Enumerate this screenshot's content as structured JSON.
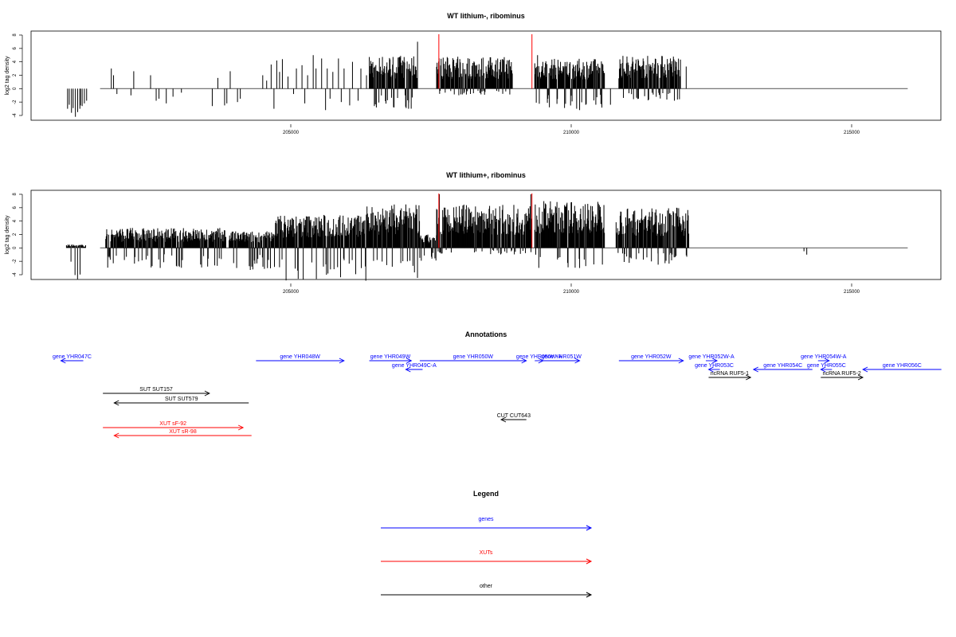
{
  "chart_data": [
    {
      "type": "bar",
      "title": "WT lithium-, ribominus",
      "xlabel": "",
      "ylabel": "log2 tag density",
      "xlim": [
        201000,
        216000
      ],
      "ylim": [
        -5.5,
        9
      ],
      "yticks": [
        -4,
        -2,
        0,
        2,
        4,
        6,
        8
      ],
      "xticks": [
        205000,
        210000,
        215000
      ],
      "region_start": 201600,
      "region_end": 216000,
      "color": "#000000",
      "markers": [
        {
          "x": 207640,
          "color": "#ff0000"
        },
        {
          "x": 209300,
          "color": "#ff0000"
        }
      ],
      "series": [
        {
          "values": [
            [
              201020,
              -3.0
            ],
            [
              201050,
              -2.4
            ],
            [
              201090,
              -3.6
            ],
            [
              201120,
              -2.9
            ],
            [
              201160,
              -4.2
            ],
            [
              201200,
              -3.5
            ],
            [
              201240,
              -3.0
            ],
            [
              201280,
              -2.6
            ],
            [
              201320,
              -2.2
            ],
            [
              201360,
              -1.8
            ],
            [
              201800,
              3.0
            ],
            [
              201840,
              2.0
            ],
            [
              201250,
              -2.5
            ],
            [
              201900,
              -0.8
            ],
            [
              202150,
              -1.0
            ],
            [
              202200,
              2.6
            ],
            [
              202500,
              2.0
            ],
            [
              202600,
              -1.8
            ],
            [
              202650,
              -1.5
            ],
            [
              202780,
              -2.2
            ],
            [
              202900,
              -1.2
            ],
            [
              203050,
              -0.6
            ],
            [
              203600,
              -2.6
            ],
            [
              203700,
              1.6
            ],
            [
              203820,
              -2.5
            ],
            [
              203860,
              -2.2
            ],
            [
              203920,
              2.6
            ],
            [
              204050,
              -2.0
            ],
            [
              204100,
              -1.5
            ],
            [
              204500,
              2.0
            ],
            [
              204570,
              1.2
            ],
            [
              204650,
              3.6
            ],
            [
              204700,
              -3.0
            ],
            [
              204750,
              4.2
            ],
            [
              204800,
              2.5
            ],
            [
              204850,
              4.4
            ],
            [
              204950,
              1.8
            ],
            [
              205050,
              -0.8
            ],
            [
              205100,
              3.0
            ],
            [
              205200,
              3.5
            ],
            [
              205250,
              -2.2
            ],
            [
              205300,
              2.0
            ],
            [
              205400,
              5.0
            ],
            [
              205450,
              3.0
            ],
            [
              205550,
              4.5
            ],
            [
              205620,
              -3.2
            ],
            [
              205650,
              3.0
            ],
            [
              205700,
              -1.5
            ],
            [
              205750,
              2.5
            ],
            [
              205850,
              4.5
            ],
            [
              205900,
              -2.0
            ],
            [
              205950,
              3.0
            ],
            [
              206050,
              -2.5
            ],
            [
              206100,
              4.0
            ],
            [
              206200,
              -1.8
            ],
            [
              206250,
              3.0
            ],
            [
              206350,
              2.0
            ]
          ]
        },
        {
          "dense": [
            206400,
            207250,
            5.0,
            -3.0
          ]
        },
        {
          "dense": [
            207600,
            208950,
            4.8,
            -1.0
          ]
        },
        {
          "dense": [
            209350,
            210600,
            4.5,
            -3.0
          ]
        },
        {
          "dense": [
            210850,
            211950,
            5.0,
            -2.0
          ]
        },
        {
          "values": [
            [
              207260,
              7.0
            ],
            [
              207100,
              -3.0
            ],
            [
              209400,
              5.0
            ],
            [
              210150,
              -3.2
            ],
            [
              210700,
              -2.4
            ],
            [
              211200,
              -1.5
            ],
            [
              212050,
              3.3
            ]
          ]
        }
      ]
    },
    {
      "type": "bar",
      "title": "WT lithium+, ribominus",
      "xlabel": "",
      "ylabel": "log2 tag density",
      "xlim": [
        201000,
        216000
      ],
      "ylim": [
        -5.5,
        9
      ],
      "yticks": [
        -4,
        -2,
        0,
        2,
        4,
        6,
        8
      ],
      "xticks": [
        205000,
        210000,
        215000
      ],
      "region_start": 201600,
      "region_end": 216000,
      "color": "#000000",
      "markers": [
        {
          "x": 207640,
          "color": "#ff0000"
        },
        {
          "x": 209300,
          "color": "#ff0000"
        }
      ],
      "series": [
        {
          "dense": [
            201000,
            201350,
            0.5,
            -5.0
          ]
        },
        {
          "dense": [
            201700,
            203850,
            3.0,
            -3.0
          ]
        },
        {
          "dense": [
            203900,
            204700,
            2.5,
            -3.5
          ]
        },
        {
          "dense": [
            204700,
            206350,
            5.0,
            -5.0
          ]
        },
        {
          "dense": [
            206350,
            207300,
            6.5,
            -4.5
          ]
        },
        {
          "dense": [
            207300,
            207600,
            2.0,
            -2.0
          ]
        },
        {
          "dense": [
            207600,
            209300,
            6.5,
            -1.0
          ]
        },
        {
          "dense": [
            209350,
            210600,
            7.0,
            -3.0
          ]
        },
        {
          "dense": [
            210800,
            212100,
            6.0,
            -2.5
          ]
        },
        {
          "values": [
            [
              214150,
              -0.5
            ],
            [
              214200,
              -1.0
            ],
            [
              207650,
              8.0
            ],
            [
              209280,
              8.0
            ],
            [
              210150,
              -3.0
            ],
            [
              211550,
              -2.5
            ],
            [
              211750,
              -1.0
            ]
          ]
        }
      ]
    }
  ],
  "annotations": {
    "title": "Annotations",
    "features": [
      {
        "label": "gene YHR047C",
        "start": 200900,
        "end": 201300,
        "strand": "-",
        "color": "#0000ff",
        "row": 1
      },
      {
        "label": "gene YHR048W",
        "start": 204380,
        "end": 205950,
        "strand": "+",
        "color": "#0000ff",
        "row": 1
      },
      {
        "label": "gene YHR049W",
        "start": 206400,
        "end": 207150,
        "strand": "+",
        "color": "#0000ff",
        "row": 1
      },
      {
        "label": "gene YHR049C-A",
        "start": 207050,
        "end": 207350,
        "strand": "-",
        "color": "#0000ff",
        "row": 2
      },
      {
        "label": "gene YHR050W",
        "start": 207300,
        "end": 209200,
        "strand": "+",
        "color": "#0000ff",
        "row": 1
      },
      {
        "label": "gene YHR050W-A",
        "start": 209350,
        "end": 209500,
        "strand": "+",
        "color": "#0000ff",
        "row": 1
      },
      {
        "label": "gene YHR051W",
        "start": 209500,
        "end": 210150,
        "strand": "+",
        "color": "#0000ff",
        "row": 1
      },
      {
        "label": "gene YHR052W",
        "start": 210850,
        "end": 212000,
        "strand": "+",
        "color": "#0000ff",
        "row": 1
      },
      {
        "label": "gene YHR052W-A",
        "start": 212400,
        "end": 212600,
        "strand": "+",
        "color": "#0000ff",
        "row": 1
      },
      {
        "label": "gene YHR053C",
        "start": 212450,
        "end": 212650,
        "strand": "-",
        "color": "#0000ff",
        "row": 2
      },
      {
        "label": "ncRNA RUF5-1",
        "start": 212450,
        "end": 213200,
        "strand": "+",
        "color": "#000000",
        "row": 3
      },
      {
        "label": "gene YHR054C",
        "start": 213250,
        "end": 214300,
        "strand": "-",
        "color": "#0000ff",
        "row": 2
      },
      {
        "label": "gene YHR054W-A",
        "start": 214400,
        "end": 214600,
        "strand": "+",
        "color": "#0000ff",
        "row": 1
      },
      {
        "label": "gene YHR055C",
        "start": 214450,
        "end": 214650,
        "strand": "-",
        "color": "#0000ff",
        "row": 2
      },
      {
        "label": "ncRNA RUF5-2",
        "start": 214450,
        "end": 215200,
        "strand": "+",
        "color": "#000000",
        "row": 3
      },
      {
        "label": "gene YHR056C",
        "start": 215200,
        "end": 216600,
        "strand": "-",
        "color": "#0000ff",
        "row": 2
      },
      {
        "label": "SUT SUT157",
        "start": 201650,
        "end": 203550,
        "strand": "+",
        "color": "#000000",
        "row": 4
      },
      {
        "label": "SUT SUT579",
        "start": 201850,
        "end": 204250,
        "strand": "-",
        "color": "#000000",
        "row": 5
      },
      {
        "label": "XUT sF-92",
        "start": 201650,
        "end": 204150,
        "strand": "+",
        "color": "#ff0000",
        "row": 7
      },
      {
        "label": "XUT sR-98",
        "start": 201850,
        "end": 204300,
        "strand": "-",
        "color": "#ff0000",
        "row": 8
      },
      {
        "label": "CUT CUT643",
        "start": 208750,
        "end": 209200,
        "strand": "-",
        "color": "#000000",
        "row": 6
      }
    ]
  },
  "legend": {
    "title": "Legend",
    "items": [
      {
        "label": "genes",
        "color": "#0000ff"
      },
      {
        "label": "XUTs",
        "color": "#ff0000"
      },
      {
        "label": "other",
        "color": "#000000"
      }
    ]
  }
}
